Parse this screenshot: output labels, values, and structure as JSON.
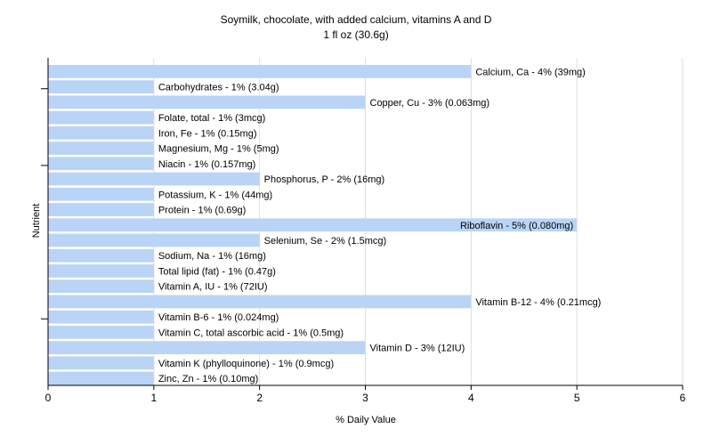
{
  "title": "Soymilk, chocolate, with added calcium, vitamins A and D",
  "subtitle": "1 fl oz (30.6g)",
  "colors": {
    "bar": "#b9d4f6",
    "grid": "#dedede",
    "axis": "#000000",
    "text": "#000000"
  },
  "chart_data": {
    "type": "bar",
    "orientation": "horizontal",
    "title": "Soymilk, chocolate, with added calcium, vitamins A and D",
    "subtitle": "1 fl oz (30.6g)",
    "xlabel": "% Daily Value",
    "ylabel": "Nutrient",
    "xlim": [
      0,
      6
    ],
    "xticks": [
      0,
      1,
      2,
      3,
      4,
      5,
      6
    ],
    "grid": true,
    "categories": [
      "Calcium, Ca",
      "Carbohydrates",
      "Copper, Cu",
      "Folate, total",
      "Iron, Fe",
      "Magnesium, Mg",
      "Niacin",
      "Phosphorus, P",
      "Potassium, K",
      "Protein",
      "Riboflavin",
      "Selenium, Se",
      "Sodium, Na",
      "Total lipid (fat)",
      "Vitamin A, IU",
      "Vitamin B-12",
      "Vitamin B-6",
      "Vitamin C, total ascorbic acid",
      "Vitamin D",
      "Vitamin K (phylloquinone)",
      "Zinc, Zn"
    ],
    "values": [
      4,
      1,
      3,
      1,
      1,
      1,
      1,
      2,
      1,
      1,
      5,
      2,
      1,
      1,
      1,
      4,
      1,
      1,
      3,
      1,
      1
    ],
    "labels": [
      "Calcium, Ca - 4% (39mg)",
      "Carbohydrates - 1% (3.04g)",
      "Copper, Cu - 3% (0.063mg)",
      "Folate, total - 1% (3mcg)",
      "Iron, Fe - 1% (0.15mg)",
      "Magnesium, Mg - 1% (5mg)",
      "Niacin - 1% (0.157mg)",
      "Phosphorus, P - 2% (16mg)",
      "Potassium, K - 1% (44mg)",
      "Protein - 1% (0.69g)",
      "Riboflavin - 5% (0.080mg)",
      "Selenium, Se - 2% (1.5mcg)",
      "Sodium, Na - 1% (16mg)",
      "Total lipid (fat) - 1% (0.47g)",
      "Vitamin A, IU - 1% (72IU)",
      "Vitamin B-12 - 4% (0.21mcg)",
      "Vitamin B-6 - 1% (0.024mg)",
      "Vitamin C, total ascorbic acid - 1% (0.5mg)",
      "Vitamin D - 3% (12IU)",
      "Vitamin K (phylloquinone) - 1% (0.9mcg)",
      "Zinc, Zn - 1% (0.10mg)"
    ]
  }
}
